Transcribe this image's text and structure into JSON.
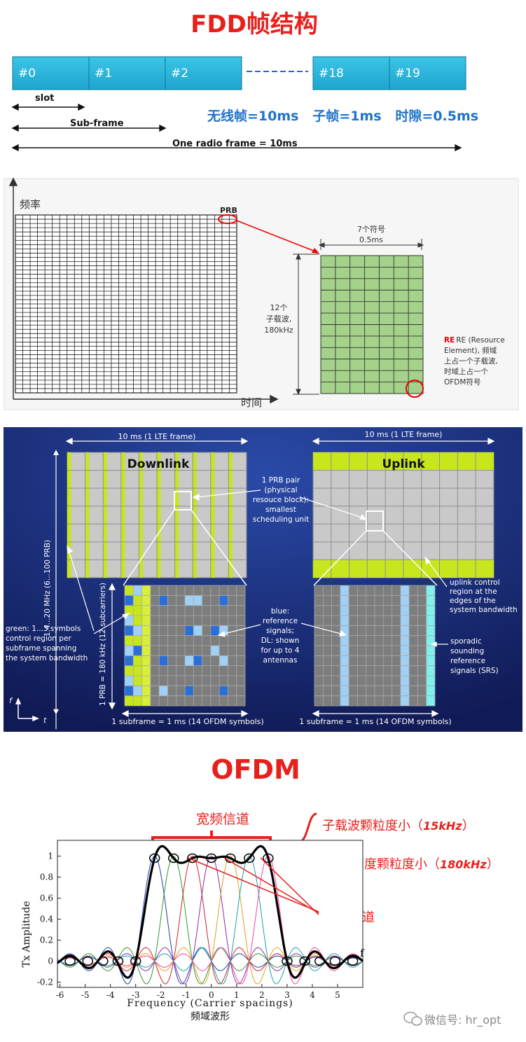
{
  "fdd": {
    "title": "FDD帧结构",
    "slots": [
      "#0",
      "#1",
      "#2",
      "#18",
      "#19"
    ],
    "slot_label": "slot",
    "subframe_label": "Sub-frame",
    "radio_frame_label": "One radio frame = 10ms",
    "summary": "无线帧=10ms   子帧=1ms   时隙=0.5ms"
  },
  "rb_grid": {
    "freq_axis": "频率",
    "time_axis": "时间",
    "prb_tag": "PRB",
    "symbols_top": "7个符号",
    "symbols_bottom": "0.5ms",
    "subcarriers": [
      "12个",
      "子载波,",
      "180kHz"
    ],
    "re_lines": [
      "RE (Resource",
      "Element), 频域",
      "上占一个子载波,",
      "时域上占一个",
      "OFDM符号"
    ]
  },
  "lte": {
    "frame_label_left": "10 ms (1 LTE frame)",
    "frame_label_right": "10 ms (1 LTE frame)",
    "downlink": "Downlink",
    "uplink": "Uplink",
    "bandwidth": "1.4...20 MHz (6...100 PRB)",
    "prb_pair": [
      "1 PRB pair",
      "(physical",
      "resouce block):",
      "smallest",
      "scheduling unit"
    ],
    "uplink_control": [
      "uplink control",
      "region at the",
      "edges of the",
      "system bandwidth"
    ],
    "green_note": [
      "green: 1...3 symbols",
      "control region per",
      "subframe spanning",
      "the system bandwidth"
    ],
    "prb_axis": "1 PRB = 180 kHz (12 subcarriers)",
    "blue_note": [
      "blue:",
      "reference",
      "signals;",
      "DL: shown",
      "for up to 4",
      "antennas"
    ],
    "srs_note": [
      "sporadic",
      "sounding",
      "reference",
      "signals (SRS)"
    ],
    "subframe_left": "1 subframe = 1 ms (14 OFDM symbols)",
    "subframe_right": "1 subframe = 1 ms (14 OFDM symbols)",
    "axis_f": "f",
    "axis_t": "t",
    "colors": {
      "bg": "#1a2a6c",
      "green": "#c8e61e",
      "ref_blue": "#2a6fd6",
      "ref_light": "#9fd0f5",
      "srs": "#7ff0ee"
    }
  },
  "ofdm": {
    "title": "OFDM",
    "wideband": "宽频信道",
    "fine1_prefix": "子载波颗粒度小（",
    "fine1_value": "15kHz",
    "fine1_suffix": "）",
    "fine2_prefix": "频域调度颗粒度小（",
    "fine2_value": "180kHz",
    "fine2_suffix": "）",
    "orthogonal": "正交子信道",
    "y_label": "Tx Amplitude",
    "x_label": "Frequency (Carrier spacings)",
    "caption": "频域波形",
    "f_label": "f",
    "watermark": "微信号: hr_opt"
  },
  "chart_data": {
    "type": "line",
    "title": "",
    "xlabel": "Frequency (Carrier spacings)",
    "ylabel": "Tx Amplitude",
    "xlim": [
      -6,
      6
    ],
    "ylim": [
      -0.2,
      1.1
    ],
    "x_ticks": [
      -6,
      -5,
      -4,
      -3,
      -2,
      -1,
      0,
      1,
      2,
      3,
      4,
      5
    ],
    "y_ticks": [
      -0.2,
      0,
      0.2,
      0.4,
      0.6,
      0.8,
      1
    ],
    "subcarrier_centers": [
      -2.25,
      -1.5,
      -0.75,
      0,
      0.75,
      1.5,
      2.25
    ],
    "series": [
      {
        "name": "",
        "description_values": "sinc subcarriers centered at 7 positions, composite sum bold black"
      }
    ]
  }
}
